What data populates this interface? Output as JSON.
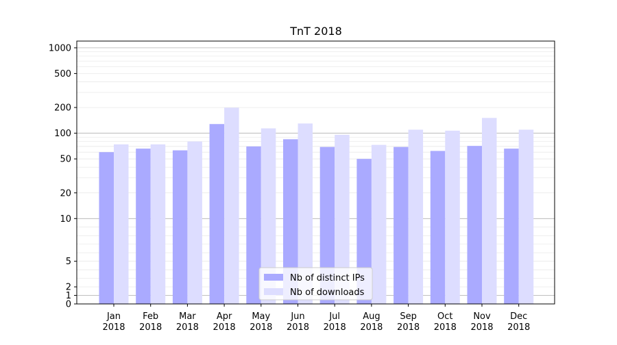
{
  "chart_data": {
    "type": "bar",
    "title": "TnT 2018",
    "xlabel": "",
    "ylabel": "",
    "yscale": "symlog",
    "ylim": [
      0,
      1200
    ],
    "grid": "y (major and minor)",
    "categories": [
      "Jan\n2018",
      "Feb\n2018",
      "Mar\n2018",
      "Apr\n2018",
      "May\n2018",
      "Jun\n2018",
      "Jul\n2018",
      "Aug\n2018",
      "Sep\n2018",
      "Oct\n2018",
      "Nov\n2018",
      "Dec\n2018"
    ],
    "yticks": [
      0,
      1,
      2,
      5,
      10,
      20,
      50,
      100,
      200,
      500,
      1000
    ],
    "series": [
      {
        "name": "Nb of distinct IPs",
        "color": "#aaaaff",
        "values": [
          60,
          66,
          63,
          128,
          70,
          85,
          69,
          50,
          69,
          62,
          71,
          66
        ]
      },
      {
        "name": "Nb of downloads",
        "color": "#ddddff",
        "values": [
          74,
          74,
          80,
          199,
          114,
          130,
          96,
          73,
          110,
          107,
          151,
          110
        ]
      }
    ],
    "legend": "bottom-center"
  }
}
